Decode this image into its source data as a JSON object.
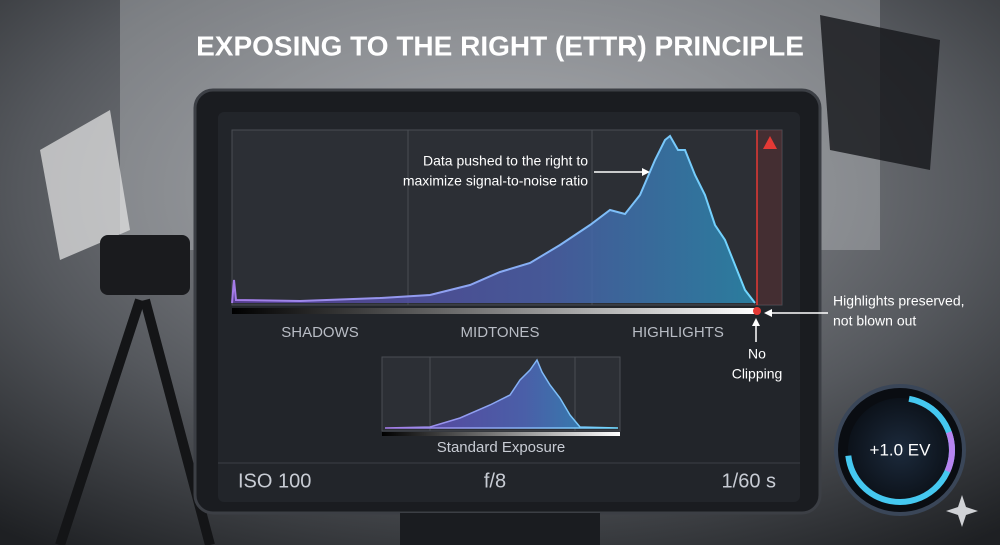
{
  "title": "EXPOSING TO THE RIGHT (ETTR) PRINCIPLE",
  "annotations": {
    "data_pushed": [
      "Data pushed to the right to",
      "maximize signal-to-noise ratio"
    ],
    "highlights": [
      "Highlights preserved,",
      "not blown out"
    ],
    "clipping": [
      "No",
      "Clipping"
    ]
  },
  "tones": [
    "SHADOWS",
    "MIDTONES",
    "HIGHLIGHTS"
  ],
  "inset_label": "Standard Exposure",
  "settings": {
    "iso": "ISO 100",
    "aperture": "f/8",
    "shutter": "1/60 s"
  },
  "dial": "+1.0 EV"
}
